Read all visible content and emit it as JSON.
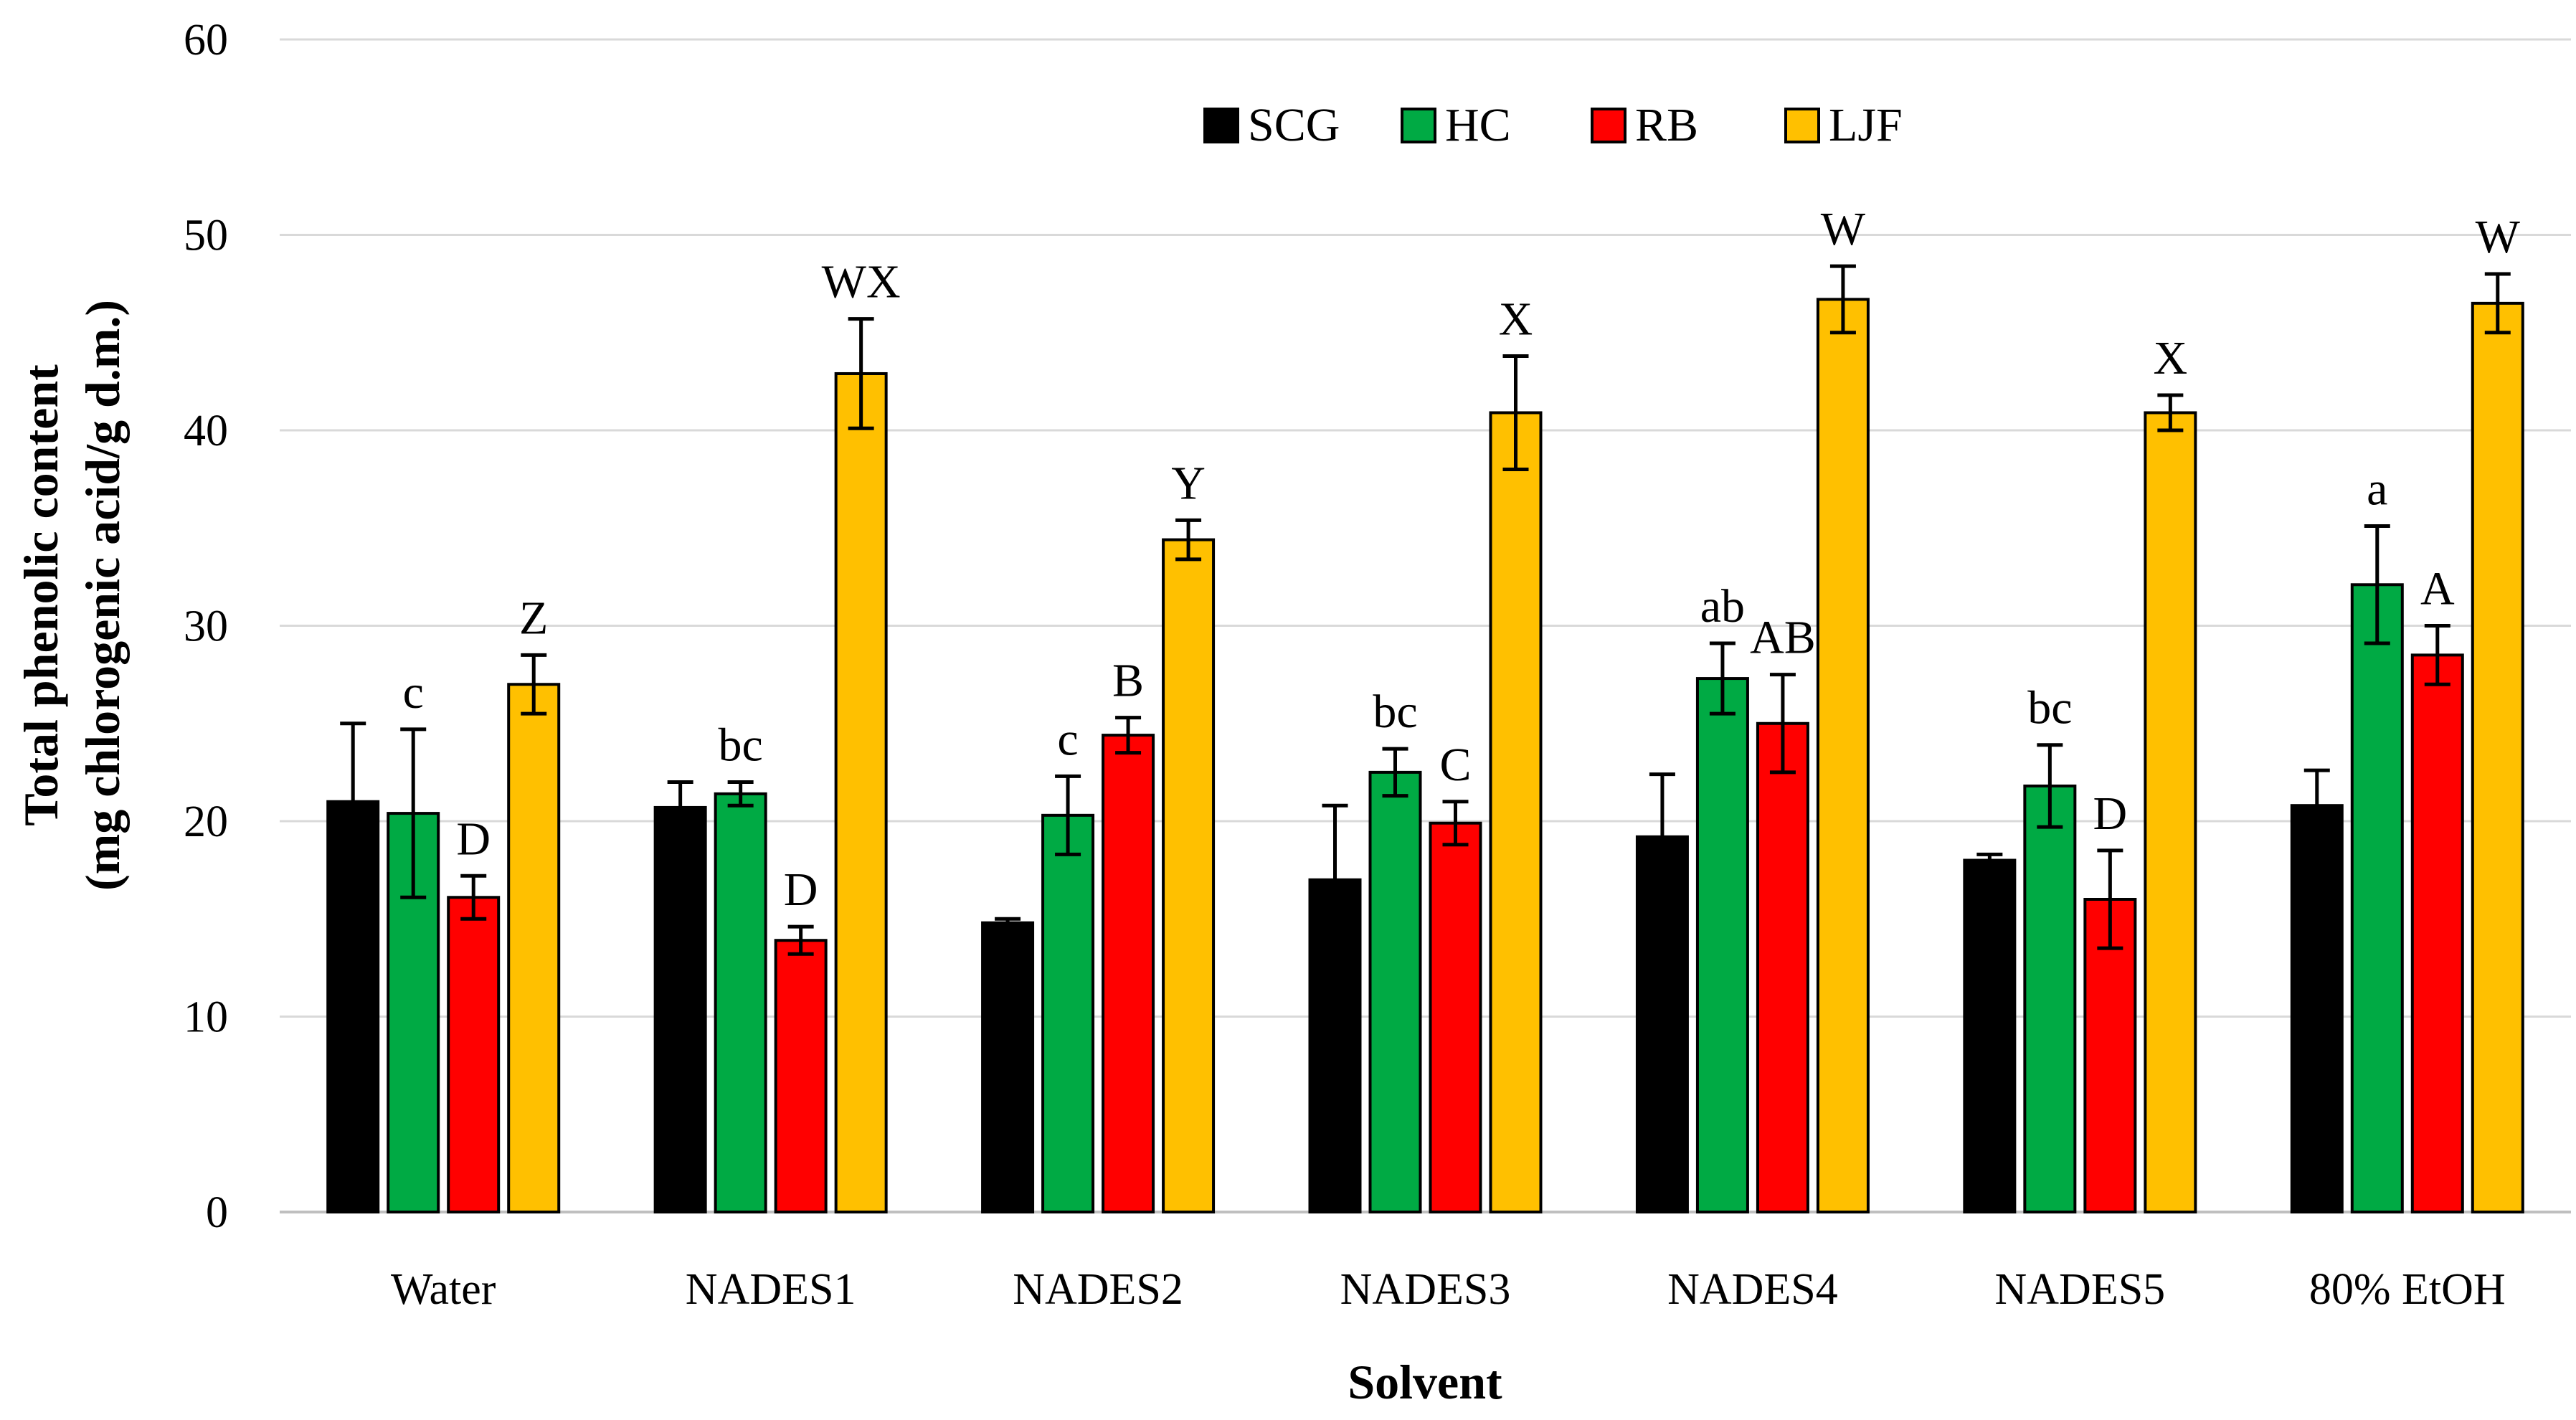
{
  "chart_data": {
    "type": "bar",
    "title": "",
    "xlabel": "Solvent",
    "ylabel_line1": "Total phenolic content",
    "ylabel_line2": "(mg chlorogenic acid/g d.m.)",
    "ylim": [
      0,
      60
    ],
    "yticks": [
      "0",
      "10",
      "20",
      "30",
      "40",
      "50",
      "60"
    ],
    "grid": true,
    "legend_position": "top-center",
    "categories": [
      "Water",
      "NADES1",
      "NADES2",
      "NADES3",
      "NADES4",
      "NADES5",
      "80% EtOH"
    ],
    "series": [
      {
        "name": "SCG",
        "color": "#000000",
        "values": [
          21.0,
          20.7,
          14.8,
          17.0,
          19.2,
          18.0,
          20.8
        ],
        "errors": [
          4.0,
          1.3,
          0.2,
          3.8,
          3.2,
          0.3,
          1.8
        ],
        "labels": [
          "",
          "",
          "",
          "",
          "",
          "",
          ""
        ]
      },
      {
        "name": "HC",
        "color": "#00AA44",
        "values": [
          20.4,
          21.4,
          20.3,
          22.5,
          27.3,
          21.8,
          32.1
        ],
        "errors": [
          4.3,
          0.6,
          2.0,
          1.2,
          1.8,
          2.1,
          3.0
        ],
        "labels": [
          "c",
          "bc",
          "c",
          "bc",
          "ab",
          "bc",
          "a"
        ]
      },
      {
        "name": "RB",
        "color": "#FF0000",
        "values": [
          16.1,
          13.9,
          24.4,
          19.9,
          25.0,
          16.0,
          28.5
        ],
        "errors": [
          1.1,
          0.7,
          0.9,
          1.1,
          2.5,
          2.5,
          1.5
        ],
        "labels": [
          "D",
          "D",
          "B",
          "C",
          "AB",
          "D",
          "A"
        ]
      },
      {
        "name": "LJF",
        "color": "#FFC000",
        "values": [
          27.0,
          42.9,
          34.4,
          40.9,
          46.7,
          40.9,
          46.5
        ],
        "errors": [
          1.5,
          2.8,
          1.0,
          2.9,
          1.7,
          0.9,
          1.5
        ],
        "labels": [
          "Z",
          "WX",
          "Y",
          "X",
          "W",
          "X",
          "W"
        ]
      }
    ]
  }
}
